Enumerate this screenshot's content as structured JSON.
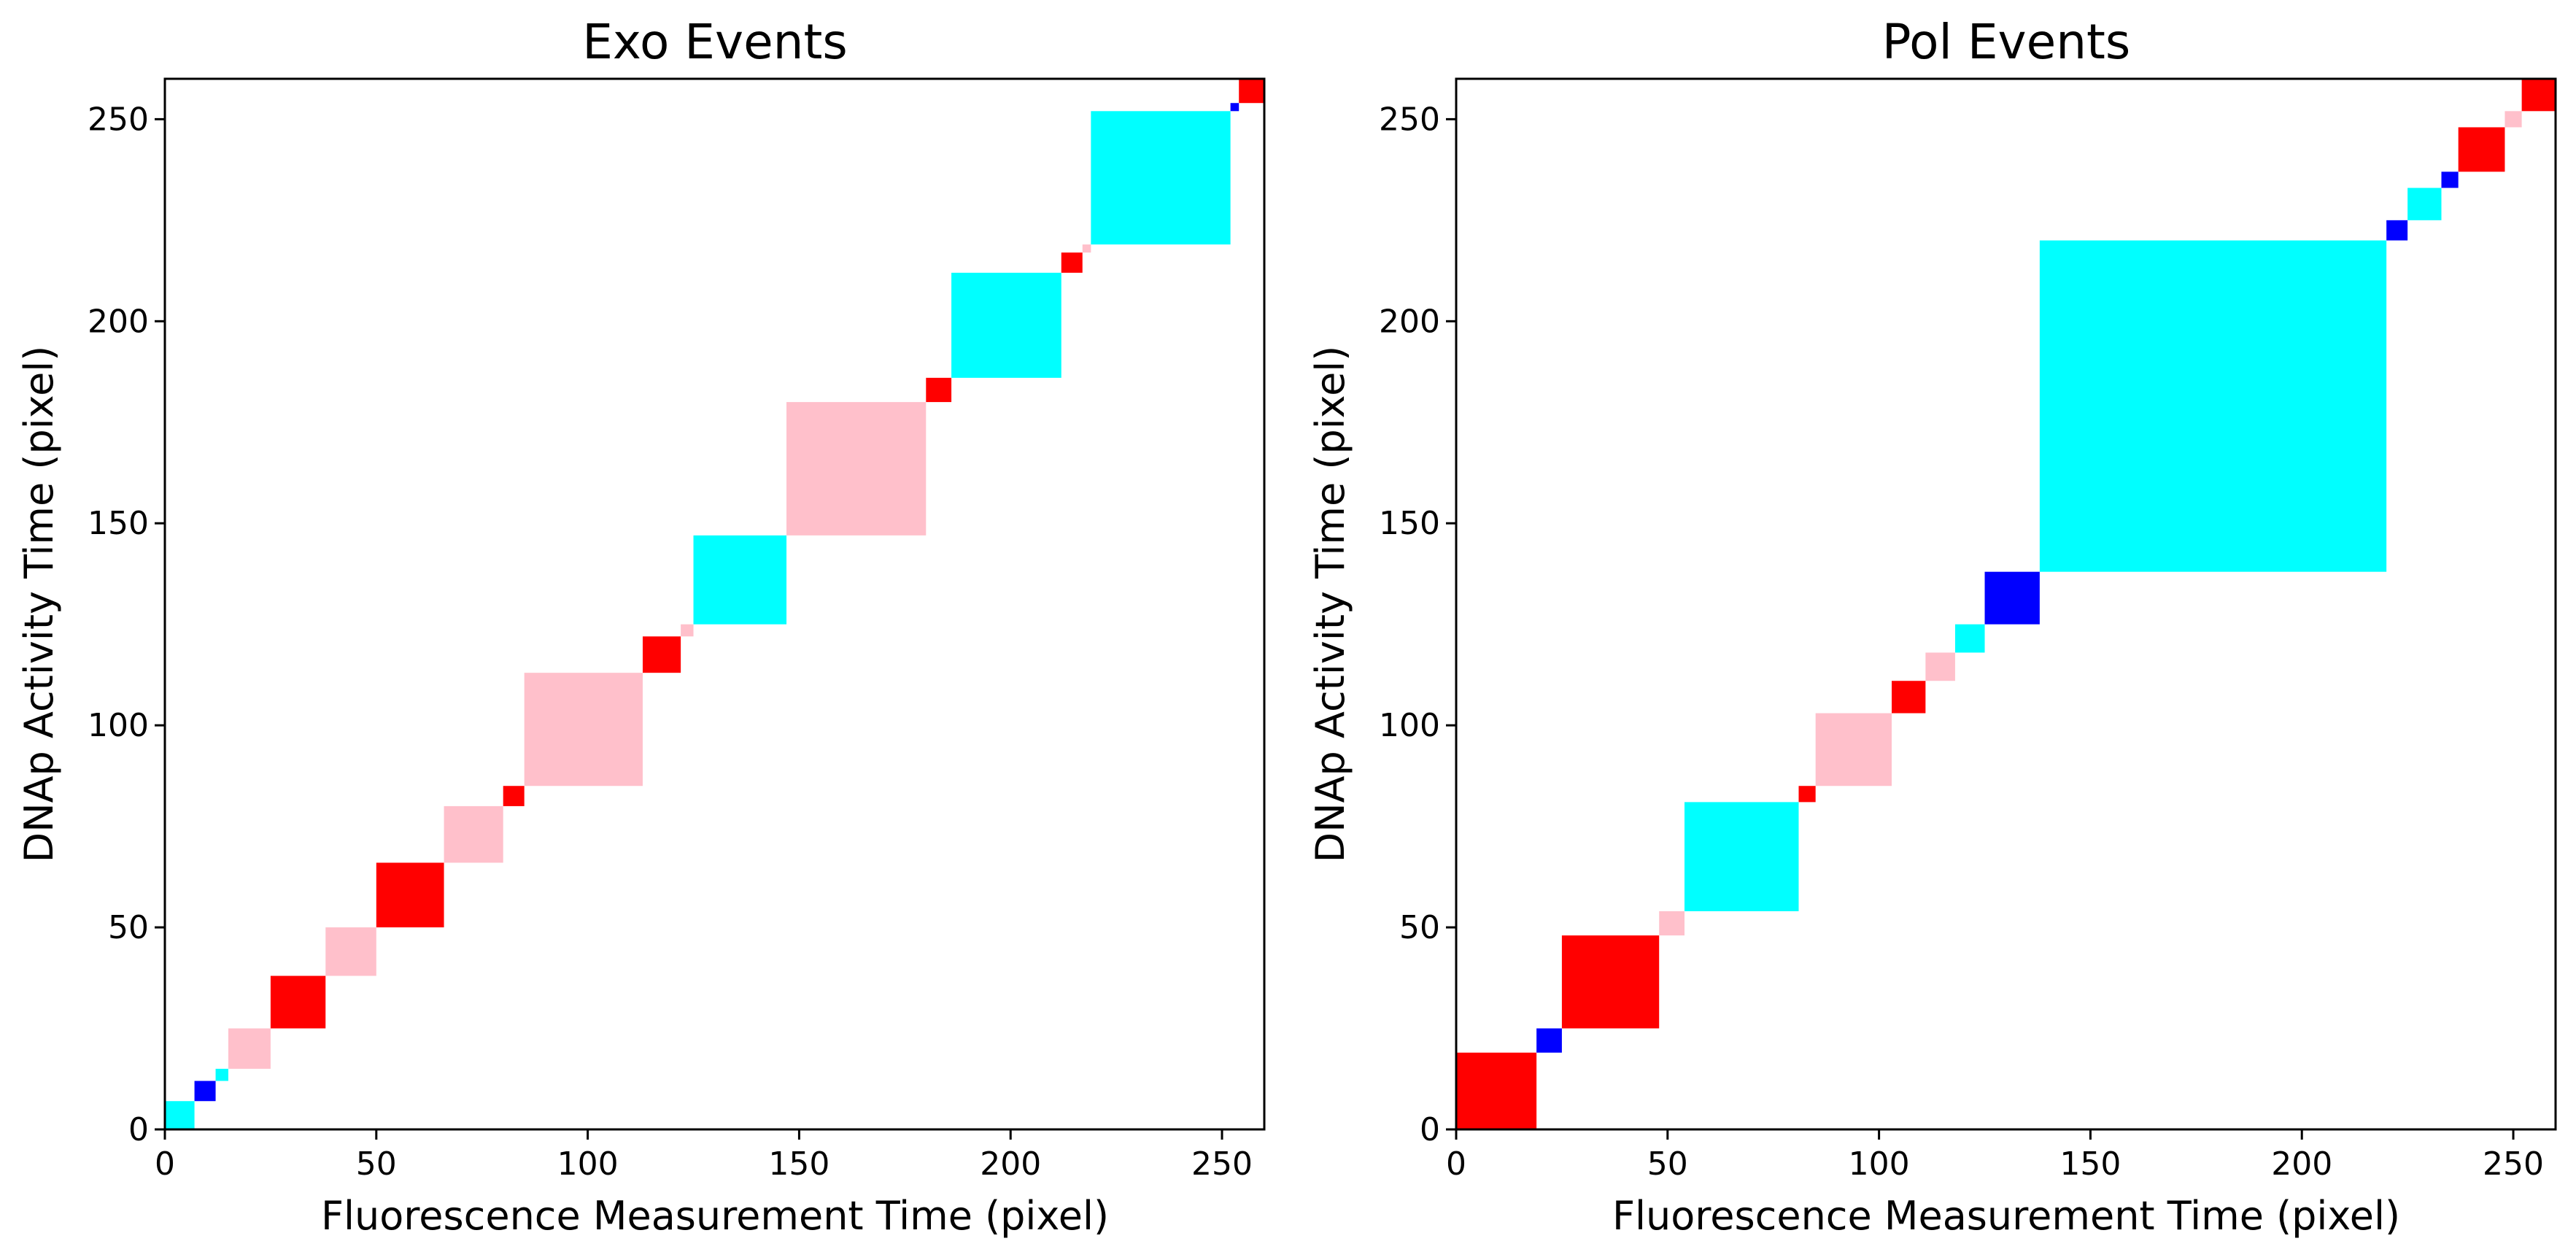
{
  "chart_data": [
    {
      "type": "heatmap",
      "title": "Exo Events",
      "xlabel": "Fluorescence Measurement Time (pixel)",
      "ylabel": "DNAp Activity Time (pixel)",
      "xlim": [
        0,
        260
      ],
      "ylim": [
        0,
        260
      ],
      "xticks": [
        0,
        50,
        100,
        150,
        200,
        250
      ],
      "yticks": [
        0,
        50,
        100,
        150,
        200,
        250
      ],
      "grid": false,
      "colors": {
        "cyan": "#00ffff",
        "blue": "#0000ff",
        "red": "#ff0000",
        "pink": "#ffc0cb"
      },
      "blocks": [
        {
          "start": 0,
          "end": 7,
          "color": "cyan"
        },
        {
          "start": 7,
          "end": 12,
          "color": "blue"
        },
        {
          "start": 12,
          "end": 15,
          "color": "cyan"
        },
        {
          "start": 15,
          "end": 25,
          "color": "pink"
        },
        {
          "start": 25,
          "end": 38,
          "color": "red"
        },
        {
          "start": 38,
          "end": 50,
          "color": "pink"
        },
        {
          "start": 50,
          "end": 66,
          "color": "red"
        },
        {
          "start": 66,
          "end": 80,
          "color": "pink"
        },
        {
          "start": 80,
          "end": 85,
          "color": "red"
        },
        {
          "start": 85,
          "end": 113,
          "color": "pink"
        },
        {
          "start": 113,
          "end": 122,
          "color": "red"
        },
        {
          "start": 122,
          "end": 125,
          "color": "pink"
        },
        {
          "start": 125,
          "end": 147,
          "color": "cyan"
        },
        {
          "start": 147,
          "end": 180,
          "color": "pink"
        },
        {
          "start": 180,
          "end": 186,
          "color": "red"
        },
        {
          "start": 186,
          "end": 212,
          "color": "cyan"
        },
        {
          "start": 212,
          "end": 217,
          "color": "red"
        },
        {
          "start": 217,
          "end": 219,
          "color": "pink"
        },
        {
          "start": 219,
          "end": 252,
          "color": "cyan"
        },
        {
          "start": 252,
          "end": 254,
          "color": "blue"
        },
        {
          "start": 254,
          "end": 260,
          "color": "red"
        }
      ]
    },
    {
      "type": "heatmap",
      "title": "Pol Events",
      "xlabel": "Fluorescence Measurement Time (pixel)",
      "ylabel": "DNAp Activity Time (pixel)",
      "xlim": [
        0,
        260
      ],
      "ylim": [
        0,
        260
      ],
      "xticks": [
        0,
        50,
        100,
        150,
        200,
        250
      ],
      "yticks": [
        0,
        50,
        100,
        150,
        200,
        250
      ],
      "grid": false,
      "colors": {
        "cyan": "#00ffff",
        "blue": "#0000ff",
        "red": "#ff0000",
        "pink": "#ffc0cb"
      },
      "blocks": [
        {
          "start": 0,
          "end": 19,
          "color": "red"
        },
        {
          "start": 19,
          "end": 25,
          "color": "blue"
        },
        {
          "start": 25,
          "end": 48,
          "color": "red"
        },
        {
          "start": 48,
          "end": 54,
          "color": "pink"
        },
        {
          "start": 54,
          "end": 81,
          "color": "cyan"
        },
        {
          "start": 81,
          "end": 85,
          "color": "red"
        },
        {
          "start": 85,
          "end": 103,
          "color": "pink"
        },
        {
          "start": 103,
          "end": 111,
          "color": "red"
        },
        {
          "start": 111,
          "end": 118,
          "color": "pink"
        },
        {
          "start": 118,
          "end": 125,
          "color": "cyan"
        },
        {
          "start": 125,
          "end": 138,
          "color": "blue"
        },
        {
          "start": 138,
          "end": 220,
          "color": "cyan"
        },
        {
          "start": 220,
          "end": 225,
          "color": "blue"
        },
        {
          "start": 225,
          "end": 233,
          "color": "cyan"
        },
        {
          "start": 233,
          "end": 237,
          "color": "blue"
        },
        {
          "start": 237,
          "end": 248,
          "color": "red"
        },
        {
          "start": 248,
          "end": 252,
          "color": "pink"
        },
        {
          "start": 252,
          "end": 260,
          "color": "red"
        }
      ]
    }
  ]
}
